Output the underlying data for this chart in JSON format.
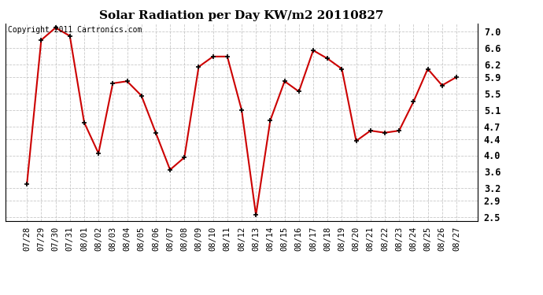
{
  "title": "Solar Radiation per Day KW/m2 20110827",
  "copyright_text": "Copyright 2011 Cartronics.com",
  "dates": [
    "07/28",
    "07/29",
    "07/30",
    "07/31",
    "08/01",
    "08/02",
    "08/03",
    "08/04",
    "08/05",
    "08/06",
    "08/07",
    "08/08",
    "08/09",
    "08/10",
    "08/11",
    "08/12",
    "08/13",
    "08/14",
    "08/15",
    "08/16",
    "08/17",
    "08/18",
    "08/19",
    "08/20",
    "08/21",
    "08/22",
    "08/23",
    "08/24",
    "08/25",
    "08/26",
    "08/27"
  ],
  "values": [
    3.3,
    6.8,
    7.1,
    6.9,
    4.8,
    4.05,
    5.75,
    5.8,
    5.45,
    4.55,
    3.65,
    3.95,
    6.15,
    6.4,
    6.4,
    5.1,
    2.55,
    4.85,
    5.8,
    5.55,
    6.55,
    6.35,
    6.1,
    4.35,
    4.6,
    4.55,
    4.6,
    5.3,
    6.1,
    5.7,
    5.9
  ],
  "line_color": "#cc0000",
  "marker_color": "#000000",
  "bg_color": "#ffffff",
  "grid_color": "#bbbbbb",
  "ylim": [
    2.4,
    7.2
  ],
  "yticks": [
    2.5,
    2.9,
    3.2,
    3.6,
    4.0,
    4.4,
    4.7,
    5.1,
    5.5,
    5.9,
    6.2,
    6.6,
    7.0
  ],
  "title_fontsize": 11,
  "copyright_fontsize": 7,
  "tick_fontsize": 7.5,
  "ytick_fontsize": 8.5
}
